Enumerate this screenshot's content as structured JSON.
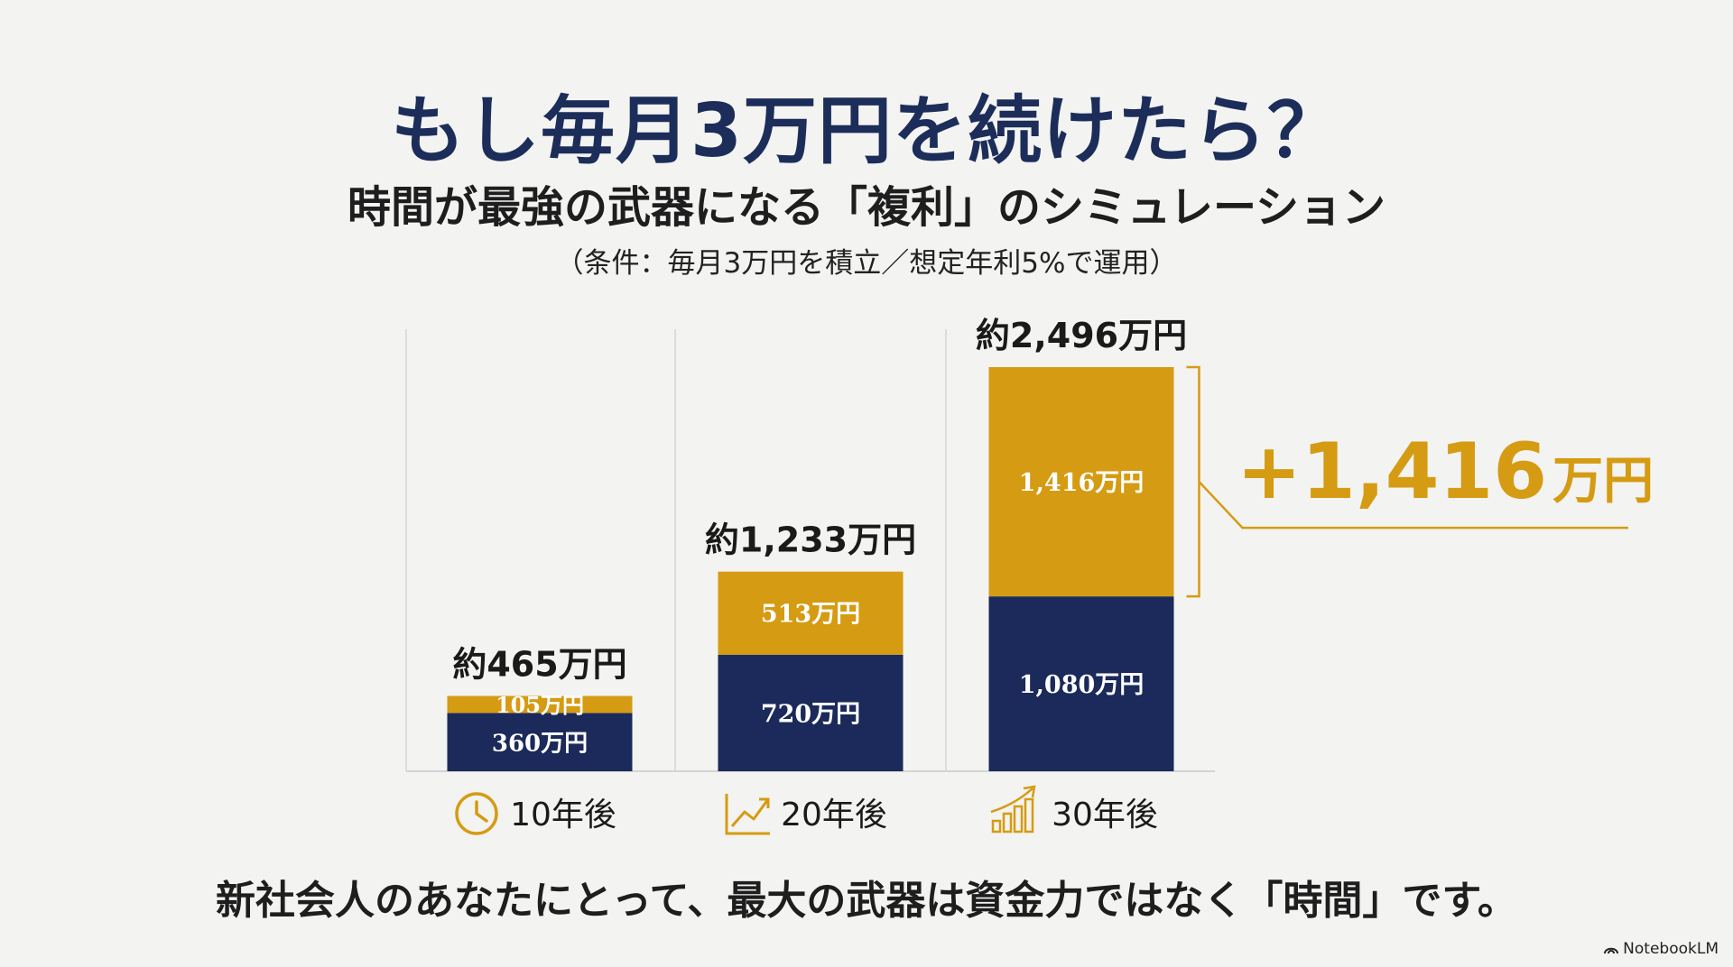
{
  "title": "もし毎月3万円を続けたら？",
  "subtitle": "時間が最強の武器になる「複利」のシミュレーション",
  "conditions": "（条件：毎月3万円を積立／想定年利5%で運用）",
  "footer": "新社会人のあなたにとって、最大の武器は資金力ではなく「時間」です。",
  "brand": "NotebookLM",
  "colors": {
    "principal": "#1b2a5b",
    "gain": "#d59b12",
    "axis": "#d4d4d4"
  },
  "chart_data": {
    "type": "bar",
    "stacked": true,
    "categories": [
      "10年後",
      "20年後",
      "30年後"
    ],
    "category_icons": [
      "clock-icon",
      "trend-line-icon",
      "growth-bars-icon"
    ],
    "series": [
      {
        "values": [
          360,
          720,
          1080
        ],
        "labels": [
          "360万円",
          "720万円",
          "1,080万円"
        ]
      },
      {
        "values": [
          105,
          513,
          1416
        ],
        "labels": [
          "105万円",
          "513万円",
          "1,416万円"
        ]
      }
    ],
    "totals": [
      465,
      1233,
      2496
    ],
    "total_labels": [
      "約465万円",
      "約1,233万円",
      "約2,496万円"
    ],
    "annotation": {
      "number": "+1,416",
      "unit": "万円"
    },
    "ylim": [
      0,
      2496
    ]
  }
}
